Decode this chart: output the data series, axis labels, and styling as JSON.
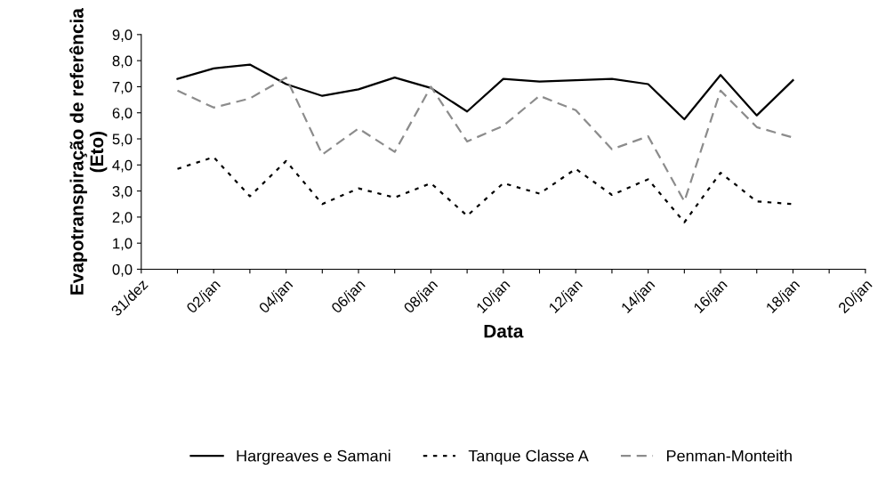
{
  "chart_data": {
    "type": "line",
    "xlabel": "Data",
    "ylabel": "Evapotranspiração de referência\n(Eto)",
    "categories": [
      "31/dez",
      null,
      "02/jan",
      null,
      "04/jan",
      null,
      "06/jan",
      null,
      "08/jan",
      null,
      "10/jan",
      null,
      "12/jan",
      null,
      "14/jan",
      null,
      "16/jan",
      null,
      "18/jan",
      null,
      "20/jan"
    ],
    "series": [
      {
        "name": "Hargreaves e Samani",
        "color": "#000000",
        "line_style": "solid",
        "values": [
          null,
          7.3,
          7.7,
          7.85,
          7.1,
          6.65,
          6.9,
          7.35,
          6.95,
          6.05,
          7.3,
          7.2,
          7.25,
          7.3,
          7.1,
          5.75,
          7.45,
          5.9,
          7.25,
          null,
          null
        ]
      },
      {
        "name": "Tanque Classe A",
        "color": "#000000",
        "line_style": "dotted",
        "values": [
          null,
          3.85,
          4.3,
          2.8,
          4.15,
          2.5,
          3.1,
          2.75,
          3.3,
          2.05,
          3.3,
          2.9,
          3.85,
          2.85,
          3.45,
          1.8,
          3.7,
          2.6,
          2.5,
          null,
          null
        ]
      },
      {
        "name": "Penman-Monteith",
        "color": "#8c8c8c",
        "line_style": "dashed",
        "values": [
          null,
          6.85,
          6.2,
          6.55,
          7.35,
          4.4,
          5.4,
          4.5,
          7.0,
          4.9,
          5.5,
          6.65,
          6.1,
          4.6,
          5.1,
          2.6,
          6.85,
          5.45,
          5.05,
          null,
          null
        ]
      }
    ],
    "ylim": [
      0,
      9
    ],
    "yticks": [
      {
        "value": 0,
        "label": "0,0"
      },
      {
        "value": 1,
        "label": "1,0"
      },
      {
        "value": 2,
        "label": "2,0"
      },
      {
        "value": 3,
        "label": "3,0"
      },
      {
        "value": 4,
        "label": "4,0"
      },
      {
        "value": 5,
        "label": "5,0"
      },
      {
        "value": 6,
        "label": "6,0"
      },
      {
        "value": 7,
        "label": "7,0"
      },
      {
        "value": 8,
        "label": "8,0"
      },
      {
        "value": 9,
        "label": "9,0"
      }
    ],
    "grid": false,
    "legend": "bottom",
    "marker": "none"
  }
}
